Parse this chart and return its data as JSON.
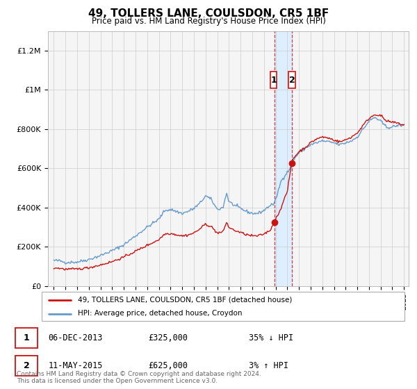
{
  "title": "49, TOLLERS LANE, COULSDON, CR5 1BF",
  "subtitle": "Price paid vs. HM Land Registry's House Price Index (HPI)",
  "background_color": "#ffffff",
  "plot_bg_color": "#f5f5f5",
  "grid_color": "#cccccc",
  "hpi_color": "#6699cc",
  "property_color": "#cc1111",
  "highlight_color": "#ddeeff",
  "transaction1_date": "06-DEC-2013",
  "transaction1_price": 325000,
  "transaction1_label": "35% ↓ HPI",
  "transaction2_date": "11-MAY-2015",
  "transaction2_price": 625000,
  "transaction2_label": "3% ↑ HPI",
  "legend_entry1": "49, TOLLERS LANE, COULSDON, CR5 1BF (detached house)",
  "legend_entry2": "HPI: Average price, detached house, Croydon",
  "footer": "Contains HM Land Registry data © Crown copyright and database right 2024.\nThis data is licensed under the Open Government Licence v3.0.",
  "ylim": [
    0,
    1300000
  ],
  "yticks": [
    0,
    200000,
    400000,
    600000,
    800000,
    1000000,
    1200000
  ],
  "ytick_labels": [
    "£0",
    "£200K",
    "£400K",
    "£600K",
    "£800K",
    "£1M",
    "£1.2M"
  ],
  "t1_x": 2013.917,
  "t2_x": 2015.37,
  "t1_y": 325000,
  "t2_y": 625000,
  "xmin": 1994.5,
  "xmax": 2025.4
}
